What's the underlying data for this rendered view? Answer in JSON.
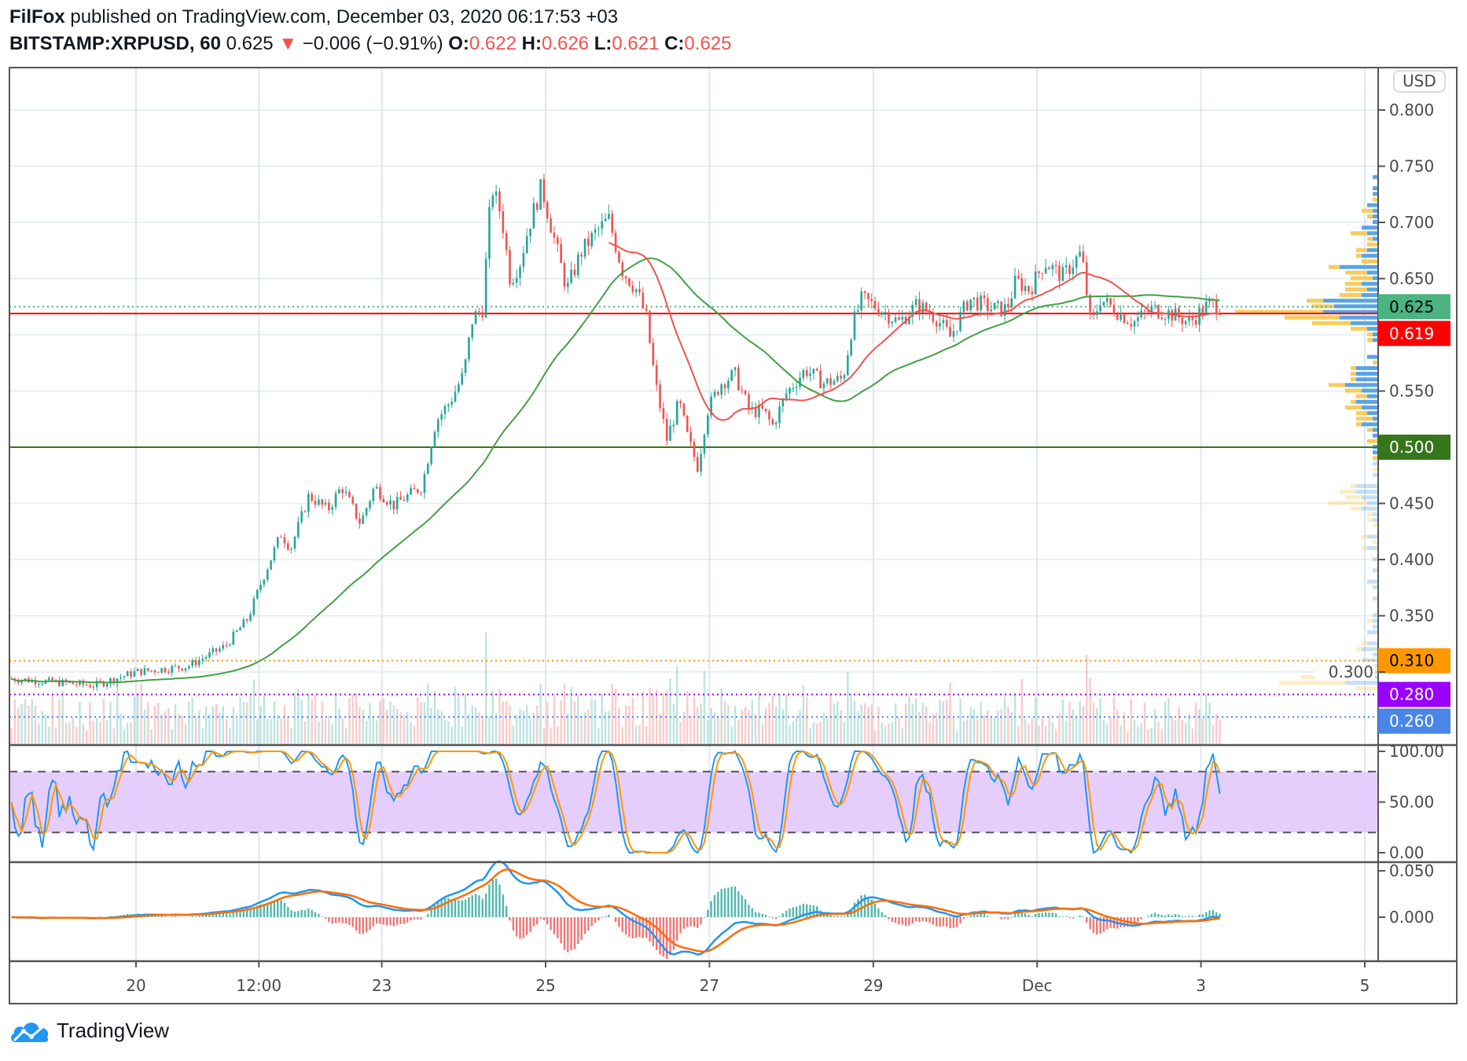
{
  "header": {
    "author": "FilFox",
    "published": "published on TradingView.com, December 03, 2020 06:17:53 +03",
    "symbol": "BITSTAMP:XRPUSD, 60",
    "last": "0.625",
    "change": "−0.006 (−0.91%)",
    "o_label": "O:",
    "o": "0.622",
    "h_label": "H:",
    "h": "0.626",
    "l_label": "L:",
    "l": "0.621",
    "c_label": "C:",
    "c": "0.625"
  },
  "currency_button": "USD",
  "logo_text": "TradingView",
  "colors": {
    "up": "#26a69a",
    "down": "#ef5350",
    "ma_slow": "#43a047",
    "ma_fast": "#ef5350",
    "stoch_k": "#2196f3",
    "stoch_d": "#ff9800",
    "macd": "#2196f3",
    "signal": "#ff6d00",
    "band": "#e1c6fb"
  },
  "price_lines": [
    {
      "value": 0.625,
      "label": "0.625",
      "color": "#4cb383",
      "text": "#000000",
      "style": "dotted"
    },
    {
      "value": 0.619,
      "label": "0.619",
      "color": "#ff0000",
      "text": "#ffffff",
      "style": "solid"
    },
    {
      "value": 0.5,
      "label": "0.500",
      "color": "#38761d",
      "text": "#ffffff",
      "style": "solid"
    },
    {
      "value": 0.31,
      "label": "0.310",
      "color": "#ff9800",
      "text": "#000000",
      "style": "dotted"
    },
    {
      "value": 0.28,
      "label": "0.280",
      "color": "#9900ff",
      "text": "#ffffff",
      "style": "dotted"
    },
    {
      "value": 0.26,
      "label": "0.260",
      "color": "#4a86e8",
      "text": "#ffffff",
      "style": "dotted"
    }
  ],
  "chart_data": {
    "type": "candlestick",
    "title": "BITSTAMP:XRPUSD, 60",
    "interval": "1h",
    "x_unit": "days since Nov 20 00:00",
    "price_ticks": [
      "0.800",
      "0.750",
      "0.700",
      "0.650",
      "0.550",
      "0.450",
      "0.400",
      "0.350",
      "0.300"
    ],
    "price_tick_values": [
      0.8,
      0.75,
      0.7,
      0.65,
      0.55,
      0.45,
      0.4,
      0.35,
      0.3
    ],
    "time_ticks": [
      {
        "label": "20",
        "day": 0
      },
      {
        "label": "12:00",
        "day": 1.5
      },
      {
        "label": "23",
        "day": 3
      },
      {
        "label": "25",
        "day": 5
      },
      {
        "label": "27",
        "day": 7
      },
      {
        "label": "29",
        "day": 9
      },
      {
        "label": "Dec",
        "day": 11
      },
      {
        "label": "3",
        "day": 13
      },
      {
        "label": "5",
        "day": 15
      }
    ],
    "close_keypoints": [
      [
        -1.52,
        0.294
      ],
      [
        -0.51,
        0.288
      ],
      [
        0,
        0.3
      ],
      [
        0.63,
        0.305
      ],
      [
        1.09,
        0.323
      ],
      [
        1.37,
        0.348
      ],
      [
        1.54,
        0.382
      ],
      [
        1.77,
        0.423
      ],
      [
        1.89,
        0.41
      ],
      [
        2.11,
        0.457
      ],
      [
        2.34,
        0.444
      ],
      [
        2.51,
        0.465
      ],
      [
        2.74,
        0.432
      ],
      [
        2.91,
        0.465
      ],
      [
        3.14,
        0.448
      ],
      [
        3.49,
        0.465
      ],
      [
        3.66,
        0.523
      ],
      [
        3.83,
        0.54
      ],
      [
        4.0,
        0.565
      ],
      [
        4.11,
        0.615
      ],
      [
        4.23,
        0.623
      ],
      [
        4.34,
        0.732
      ],
      [
        4.46,
        0.707
      ],
      [
        4.57,
        0.648
      ],
      [
        4.69,
        0.665
      ],
      [
        4.8,
        0.698
      ],
      [
        4.95,
        0.732
      ],
      [
        5.09,
        0.69
      ],
      [
        5.26,
        0.64
      ],
      [
        5.43,
        0.673
      ],
      [
        5.6,
        0.69
      ],
      [
        5.77,
        0.703
      ],
      [
        5.94,
        0.657
      ],
      [
        6.11,
        0.64
      ],
      [
        6.23,
        0.615
      ],
      [
        6.34,
        0.557
      ],
      [
        6.48,
        0.507
      ],
      [
        6.63,
        0.54
      ],
      [
        6.74,
        0.507
      ],
      [
        6.86,
        0.482
      ],
      [
        6.97,
        0.532
      ],
      [
        7.14,
        0.557
      ],
      [
        7.31,
        0.565
      ],
      [
        7.49,
        0.532
      ],
      [
        7.66,
        0.532
      ],
      [
        7.77,
        0.519
      ],
      [
        7.94,
        0.548
      ],
      [
        8.17,
        0.569
      ],
      [
        8.4,
        0.557
      ],
      [
        8.63,
        0.561
      ],
      [
        8.74,
        0.607
      ],
      [
        8.86,
        0.632
      ],
      [
        9.09,
        0.623
      ],
      [
        9.31,
        0.611
      ],
      [
        9.54,
        0.627
      ],
      [
        9.77,
        0.615
      ],
      [
        9.94,
        0.598
      ],
      [
        10.17,
        0.632
      ],
      [
        10.46,
        0.623
      ],
      [
        10.63,
        0.623
      ],
      [
        10.74,
        0.648
      ],
      [
        10.91,
        0.64
      ],
      [
        11.09,
        0.665
      ],
      [
        11.31,
        0.652
      ],
      [
        11.54,
        0.673
      ],
      [
        11.66,
        0.607
      ],
      [
        11.77,
        0.632
      ],
      [
        11.94,
        0.623
      ],
      [
        12.17,
        0.611
      ],
      [
        12.4,
        0.623
      ],
      [
        12.63,
        0.619
      ],
      [
        12.86,
        0.611
      ],
      [
        13.09,
        0.627
      ],
      [
        13.26,
        0.625
      ]
    ],
    "ma_periods": {
      "slow": 55,
      "fast": 20
    },
    "stoch": {
      "ticks": [
        "100.00",
        "50.00",
        "0.00"
      ],
      "tick_values": [
        100,
        50,
        0
      ],
      "upper": 80,
      "lower": 20
    },
    "macd": {
      "ticks": [
        "0.050",
        "0.000"
      ],
      "tick_values": [
        0.05,
        0
      ],
      "fast": 12,
      "slow": 26,
      "signal": 9
    }
  }
}
